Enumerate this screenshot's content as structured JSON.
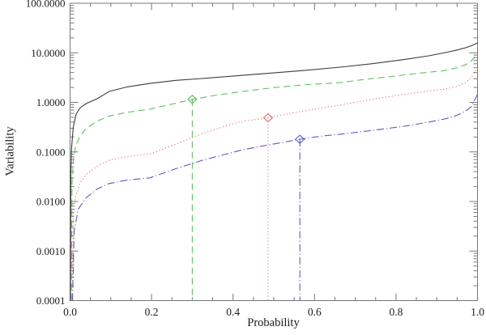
{
  "figure": {
    "background": "#ffffff",
    "frame_color": "#787878",
    "text_color": "#1b1b1b"
  },
  "chart_data": {
    "type": "line",
    "title": "",
    "xlabel": "Probability",
    "ylabel": "Variability",
    "x_scale": "linear",
    "y_scale": "log",
    "xlim": [
      0.0,
      1.0
    ],
    "ylim": [
      0.0001,
      100.0
    ],
    "grid": false,
    "legend": "none",
    "x_major_ticks": [
      {
        "value": 0.0,
        "label": "0.0"
      },
      {
        "value": 0.2,
        "label": "0.2"
      },
      {
        "value": 0.4,
        "label": "0.4"
      },
      {
        "value": 0.6,
        "label": "0.6"
      },
      {
        "value": 0.8,
        "label": "0.8"
      },
      {
        "value": 1.0,
        "label": "1.0"
      }
    ],
    "x_minor_step": 0.05,
    "y_major_ticks": [
      {
        "value": 100.0,
        "label": "100.0000"
      },
      {
        "value": 10.0,
        "label": "10.0000"
      },
      {
        "value": 1.0,
        "label": "1.0000"
      },
      {
        "value": 0.1,
        "label": "0.1000"
      },
      {
        "value": 0.01,
        "label": "0.0100"
      },
      {
        "value": 0.001,
        "label": "0.0010"
      },
      {
        "value": 0.0001,
        "label": "0.0001"
      }
    ],
    "y_minor_per_decade": [
      2,
      3,
      4,
      5,
      6,
      7,
      8,
      9
    ],
    "series": [
      {
        "name": "black-solid",
        "color": "#3c3c3c",
        "line_style": "solid",
        "points": [
          [
            0.001,
            0.0001
          ],
          [
            0.002,
            0.04
          ],
          [
            0.004,
            0.13
          ],
          [
            0.008,
            0.32
          ],
          [
            0.015,
            0.58
          ],
          [
            0.025,
            0.78
          ],
          [
            0.04,
            0.95
          ],
          [
            0.067,
            1.19
          ],
          [
            0.096,
            1.66
          ],
          [
            0.14,
            2.05
          ],
          [
            0.196,
            2.41
          ],
          [
            0.26,
            2.78
          ],
          [
            0.325,
            3.03
          ],
          [
            0.42,
            3.5
          ],
          [
            0.5,
            3.93
          ],
          [
            0.58,
            4.45
          ],
          [
            0.663,
            5.14
          ],
          [
            0.74,
            6.0
          ],
          [
            0.82,
            7.3
          ],
          [
            0.88,
            8.7
          ],
          [
            0.921,
            10.1
          ],
          [
            0.95,
            11.4
          ],
          [
            0.97,
            12.6
          ],
          [
            0.985,
            13.9
          ],
          [
            1.0,
            15.8
          ]
        ]
      },
      {
        "name": "green-dashed",
        "color": "#5fc05f",
        "line_style": "dashed",
        "points": [
          [
            0.003,
            0.0001
          ],
          [
            0.005,
            0.025
          ],
          [
            0.009,
            0.08
          ],
          [
            0.015,
            0.14
          ],
          [
            0.025,
            0.21
          ],
          [
            0.04,
            0.3
          ],
          [
            0.067,
            0.42
          ],
          [
            0.096,
            0.53
          ],
          [
            0.14,
            0.63
          ],
          [
            0.196,
            0.73
          ],
          [
            0.25,
            0.92
          ],
          [
            0.3,
            1.15
          ],
          [
            0.36,
            1.4
          ],
          [
            0.424,
            1.66
          ],
          [
            0.5,
            1.98
          ],
          [
            0.58,
            2.28
          ],
          [
            0.663,
            2.5
          ],
          [
            0.722,
            2.9
          ],
          [
            0.8,
            3.4
          ],
          [
            0.86,
            3.9
          ],
          [
            0.921,
            4.4
          ],
          [
            0.95,
            5.0
          ],
          [
            0.97,
            5.7
          ],
          [
            0.985,
            6.9
          ],
          [
            1.0,
            9.4
          ]
        ],
        "marker": {
          "shape": "open-diamond",
          "p": 0.3,
          "value": 1.15,
          "drop_line_to_axis": true
        }
      },
      {
        "name": "red-dotted",
        "color": "#e06a6a",
        "line_style": "dotted",
        "points": [
          [
            0.005,
            0.0001
          ],
          [
            0.008,
            0.005
          ],
          [
            0.013,
            0.012
          ],
          [
            0.025,
            0.024
          ],
          [
            0.04,
            0.035
          ],
          [
            0.067,
            0.052
          ],
          [
            0.096,
            0.068
          ],
          [
            0.14,
            0.081
          ],
          [
            0.196,
            0.091
          ],
          [
            0.26,
            0.145
          ],
          [
            0.325,
            0.235
          ],
          [
            0.4,
            0.37
          ],
          [
            0.424,
            0.415
          ],
          [
            0.486,
            0.49
          ],
          [
            0.55,
            0.62
          ],
          [
            0.6,
            0.73
          ],
          [
            0.663,
            0.88
          ],
          [
            0.74,
            1.15
          ],
          [
            0.82,
            1.45
          ],
          [
            0.88,
            1.7
          ],
          [
            0.921,
            1.86
          ],
          [
            0.95,
            2.1
          ],
          [
            0.97,
            2.5
          ],
          [
            0.985,
            3.2
          ],
          [
            1.0,
            5.1
          ]
        ],
        "marker": {
          "shape": "open-diamond",
          "p": 0.486,
          "value": 0.49,
          "drop_line_to_axis": true
        }
      },
      {
        "name": "blue-dashdot",
        "color": "#5a5ac0",
        "line_style": "dashdot",
        "points": [
          [
            0.006,
            0.0001
          ],
          [
            0.01,
            0.0025
          ],
          [
            0.02,
            0.007
          ],
          [
            0.04,
            0.012
          ],
          [
            0.067,
            0.018
          ],
          [
            0.096,
            0.023
          ],
          [
            0.14,
            0.027
          ],
          [
            0.196,
            0.03
          ],
          [
            0.26,
            0.046
          ],
          [
            0.325,
            0.068
          ],
          [
            0.424,
            0.111
          ],
          [
            0.5,
            0.145
          ],
          [
            0.564,
            0.18
          ],
          [
            0.62,
            0.21
          ],
          [
            0.663,
            0.227
          ],
          [
            0.74,
            0.27
          ],
          [
            0.82,
            0.33
          ],
          [
            0.88,
            0.4
          ],
          [
            0.921,
            0.465
          ],
          [
            0.95,
            0.55
          ],
          [
            0.97,
            0.66
          ],
          [
            0.985,
            0.82
          ],
          [
            1.0,
            1.45
          ]
        ],
        "marker": {
          "shape": "open-diamond",
          "p": 0.564,
          "value": 0.18,
          "drop_line_to_axis": true
        }
      }
    ]
  }
}
